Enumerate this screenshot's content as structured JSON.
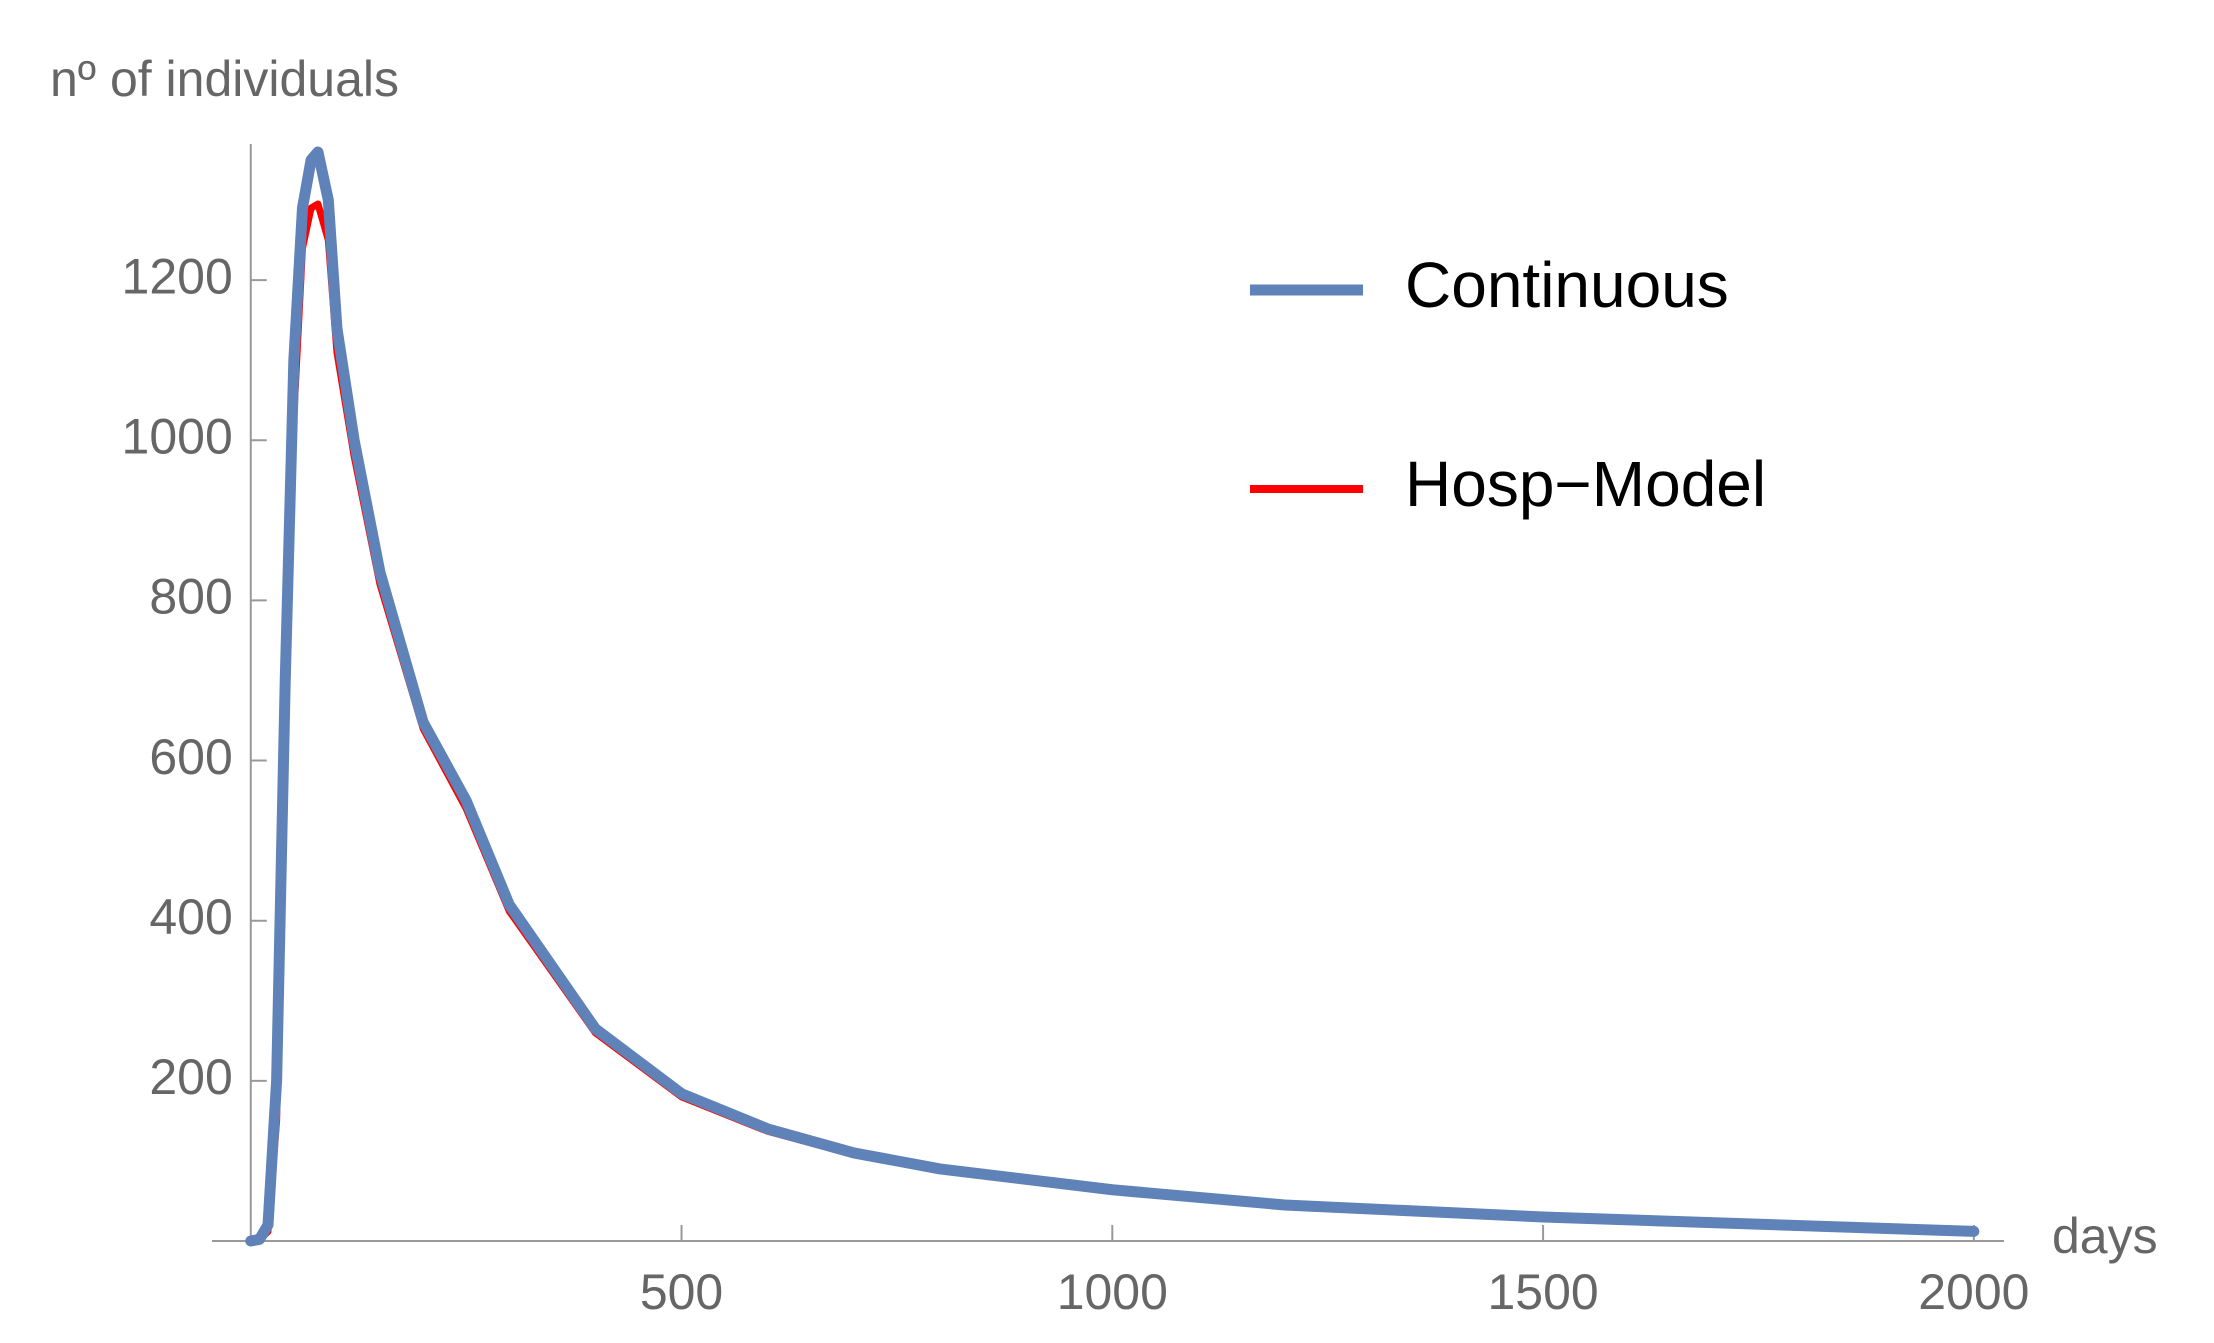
{
  "chart_data": {
    "type": "line",
    "y_label": "nº of individuals",
    "x_label": "days",
    "x": [
      0,
      10,
      20,
      30,
      40,
      50,
      60,
      70,
      78,
      90,
      100,
      120,
      150,
      200,
      250,
      300,
      400,
      500,
      600,
      700,
      800,
      1000,
      1200,
      1500,
      2000
    ],
    "series": [
      {
        "name": "Continuous",
        "color": "#5f82b8",
        "values": [
          0,
          2,
          20,
          200,
          700,
          1100,
          1290,
          1350,
          1360,
          1300,
          1140,
          1000,
          835,
          648,
          550,
          420,
          265,
          184,
          140,
          110,
          90,
          64,
          45,
          30,
          12
        ]
      },
      {
        "name": "Hosp−Model",
        "color": "#ff0000",
        "values": [
          0,
          1,
          12,
          150,
          620,
          1030,
          1240,
          1290,
          1295,
          1250,
          1110,
          980,
          820,
          640,
          540,
          412,
          260,
          180,
          137,
          108,
          88,
          62,
          44,
          29,
          12
        ]
      }
    ],
    "xlim": [
      -45,
      2035
    ],
    "ylim": [
      0,
      1370
    ],
    "xticks": [
      500,
      1000,
      1500,
      2000
    ],
    "yticks": [
      200,
      400,
      600,
      800,
      1000,
      1200
    ],
    "legend": "top-right"
  }
}
